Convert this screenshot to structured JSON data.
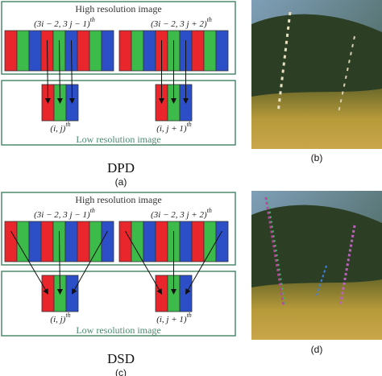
{
  "panels": [
    {
      "high_label": "High resolution image",
      "left_pixel_label": "(3i − 2, 3 j − 1)",
      "left_pixel_sup": "th",
      "right_pixel_label": "(3i − 2, 3 j + 2)",
      "right_pixel_sup": "th",
      "low_left_label": "(i, j)",
      "low_left_sup": "th",
      "low_right_label": "(i, j + 1)",
      "low_right_sup": "th",
      "low_label": "Low resolution image",
      "title": "DPD",
      "caption": "(a)"
    },
    {
      "high_label": "High resolution image",
      "left_pixel_label": "(3i − 2, 3 j − 1)",
      "left_pixel_sup": "th",
      "right_pixel_label": "(3i − 2, 3 j + 2)",
      "right_pixel_sup": "th",
      "low_left_label": "(i, j)",
      "low_left_sup": "th",
      "low_right_label": "(i, j + 1)",
      "low_right_sup": "th",
      "low_label": "Low resolution image",
      "title": "DSD",
      "caption": "(c)"
    }
  ],
  "photos": [
    {
      "caption": "(b)"
    },
    {
      "caption": "(d)"
    }
  ]
}
